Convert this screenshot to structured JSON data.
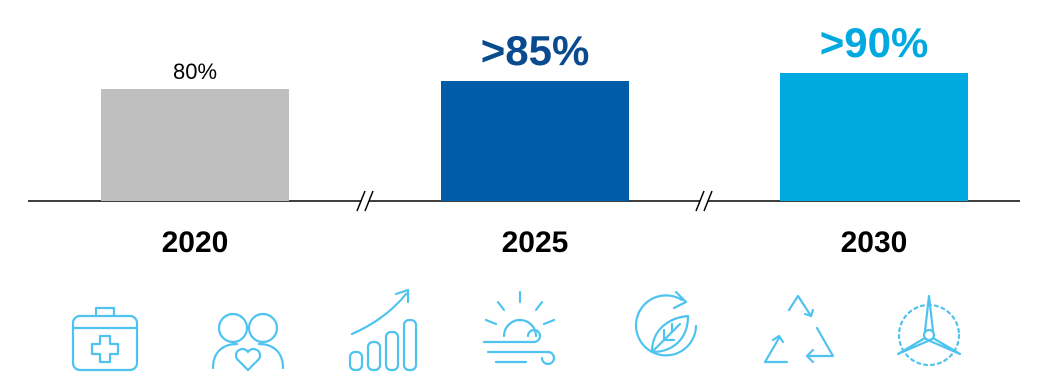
{
  "chart_data": {
    "type": "bar",
    "categories": [
      "2020",
      "2025",
      "2030"
    ],
    "values": [
      80,
      85,
      90
    ],
    "data_labels": [
      "80%",
      ">85%",
      ">90%"
    ],
    "colors": [
      "#bfbfbf",
      "#005ca9",
      "#00a9e0"
    ],
    "label_colors": [
      "#000000",
      "#0a4a8f",
      "#00a9e0"
    ],
    "axis_breaks": true,
    "grid": false,
    "ylim": [
      0,
      100
    ]
  },
  "icons": [
    {
      "name": "first-aid-kit-icon"
    },
    {
      "name": "people-heart-icon"
    },
    {
      "name": "growth-chart-icon"
    },
    {
      "name": "sun-wind-icon"
    },
    {
      "name": "leaf-cycle-icon"
    },
    {
      "name": "recycle-icon"
    },
    {
      "name": "wind-turbine-icon"
    }
  ],
  "icon_color": "#4fc3ef"
}
